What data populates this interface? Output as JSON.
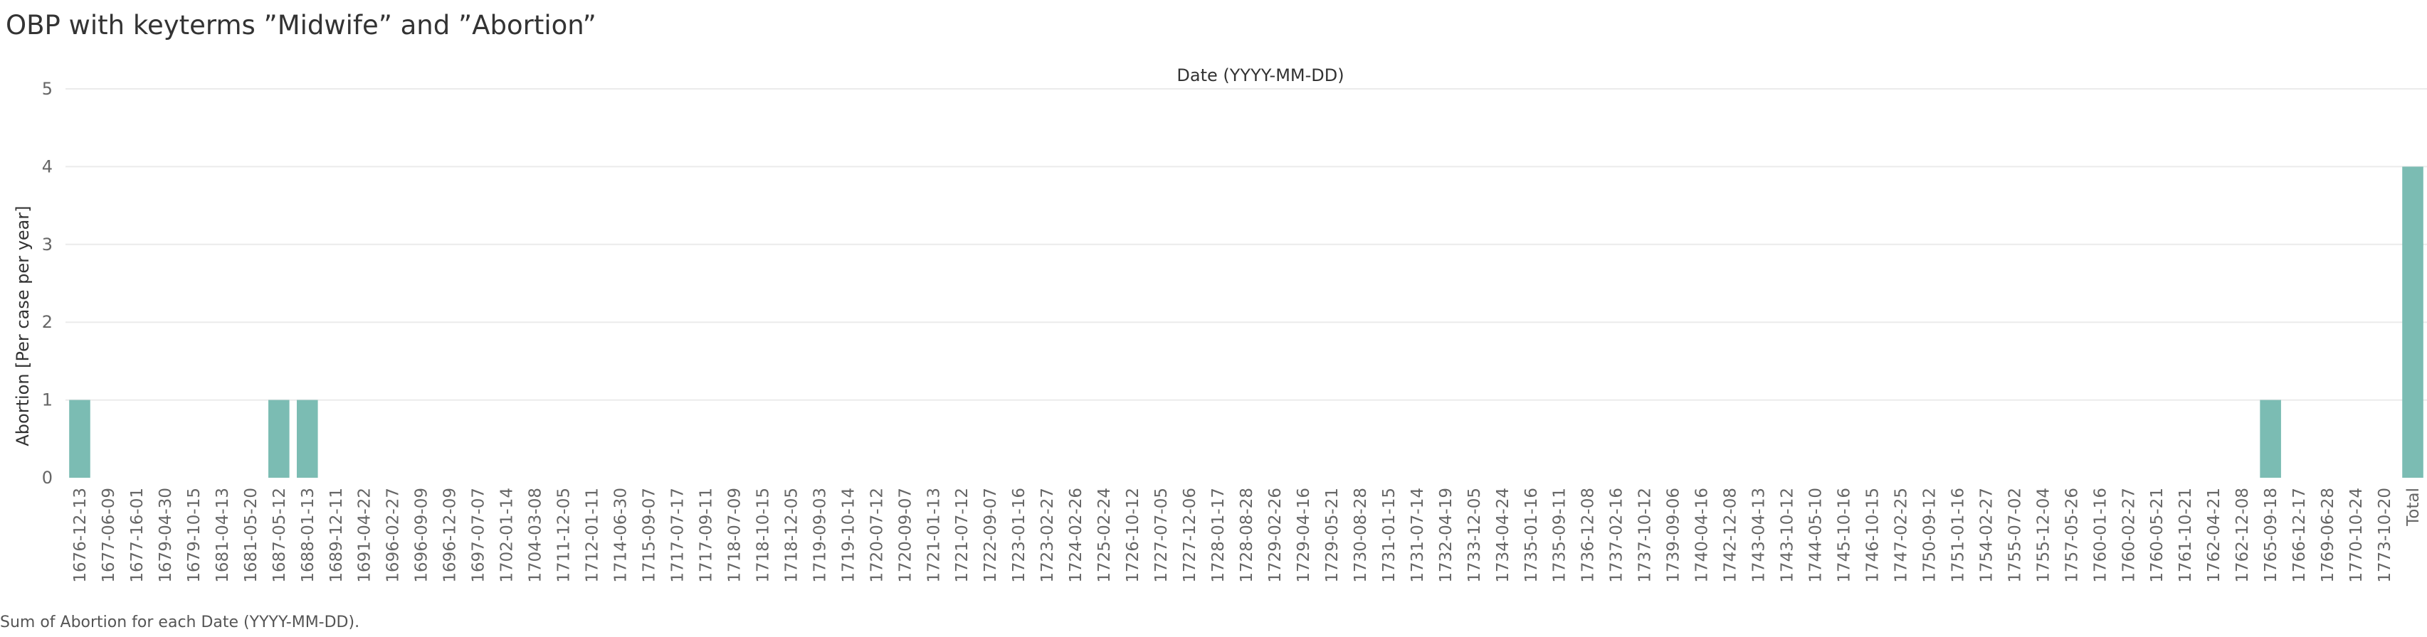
{
  "title": "OBP with keyterms ”Midwife” and ”Abortion”",
  "caption": "Sum of Abortion for each Date (YYYY-MM-DD).",
  "colors": {
    "bar": "#7bbcb3",
    "grid": "#ebebeb",
    "axis_text": "#666666"
  },
  "chart_data": {
    "type": "bar",
    "title": "",
    "xlabel": "Date (YYYY-MM-DD)",
    "ylabel": "Abortion [Per case per year]",
    "ylim": [
      0,
      5
    ],
    "yticks": [
      0,
      1,
      2,
      3,
      4,
      5
    ],
    "grid": true,
    "categories": [
      "1676-12-13",
      "1677-06-09",
      "1677-16-01",
      "1679-04-30",
      "1679-10-15",
      "1681-04-13",
      "1681-05-20",
      "1687-05-12",
      "1688-01-13",
      "1689-12-11",
      "1691-04-22",
      "1696-02-27",
      "1696-09-09",
      "1696-12-09",
      "1697-07-07",
      "1702-01-14",
      "1704-03-08",
      "1711-12-05",
      "1712-01-11",
      "1714-06-30",
      "1715-09-07",
      "1717-07-17",
      "1717-09-11",
      "1718-07-09",
      "1718-10-15",
      "1718-12-05",
      "1719-09-03",
      "1719-10-14",
      "1720-07-12",
      "1720-09-07",
      "1721-01-13",
      "1721-07-12",
      "1722-09-07",
      "1723-01-16",
      "1723-02-27",
      "1724-02-26",
      "1725-02-24",
      "1726-10-12",
      "1727-07-05",
      "1727-12-06",
      "1728-01-17",
      "1728-08-28",
      "1729-02-26",
      "1729-04-16",
      "1729-05-21",
      "1730-08-28",
      "1731-01-15",
      "1731-07-14",
      "1732-04-19",
      "1733-12-05",
      "1734-04-24",
      "1735-01-16",
      "1735-09-11",
      "1736-12-08",
      "1737-02-16",
      "1737-10-12",
      "1739-09-06",
      "1740-04-16",
      "1742-12-08",
      "1743-04-13",
      "1743-10-12",
      "1744-05-10",
      "1745-10-16",
      "1746-10-15",
      "1747-02-25",
      "1750-09-12",
      "1751-01-16",
      "1754-02-27",
      "1755-07-02",
      "1755-12-04",
      "1757-05-26",
      "1760-01-16",
      "1760-02-27",
      "1760-05-21",
      "1761-10-21",
      "1762-04-21",
      "1762-12-08",
      "1765-09-18",
      "1766-12-17",
      "1769-06-28",
      "1770-10-24",
      "1773-10-20",
      "Total"
    ],
    "values": [
      1,
      0,
      0,
      0,
      0,
      0,
      0,
      1,
      1,
      0,
      0,
      0,
      0,
      0,
      0,
      0,
      0,
      0,
      0,
      0,
      0,
      0,
      0,
      0,
      0,
      0,
      0,
      0,
      0,
      0,
      0,
      0,
      0,
      0,
      0,
      0,
      0,
      0,
      0,
      0,
      0,
      0,
      0,
      0,
      0,
      0,
      0,
      0,
      0,
      0,
      0,
      0,
      0,
      0,
      0,
      0,
      0,
      0,
      0,
      0,
      0,
      0,
      0,
      0,
      0,
      0,
      0,
      0,
      0,
      0,
      0,
      0,
      0,
      0,
      0,
      0,
      0,
      1,
      0,
      0,
      0,
      0,
      4
    ]
  }
}
